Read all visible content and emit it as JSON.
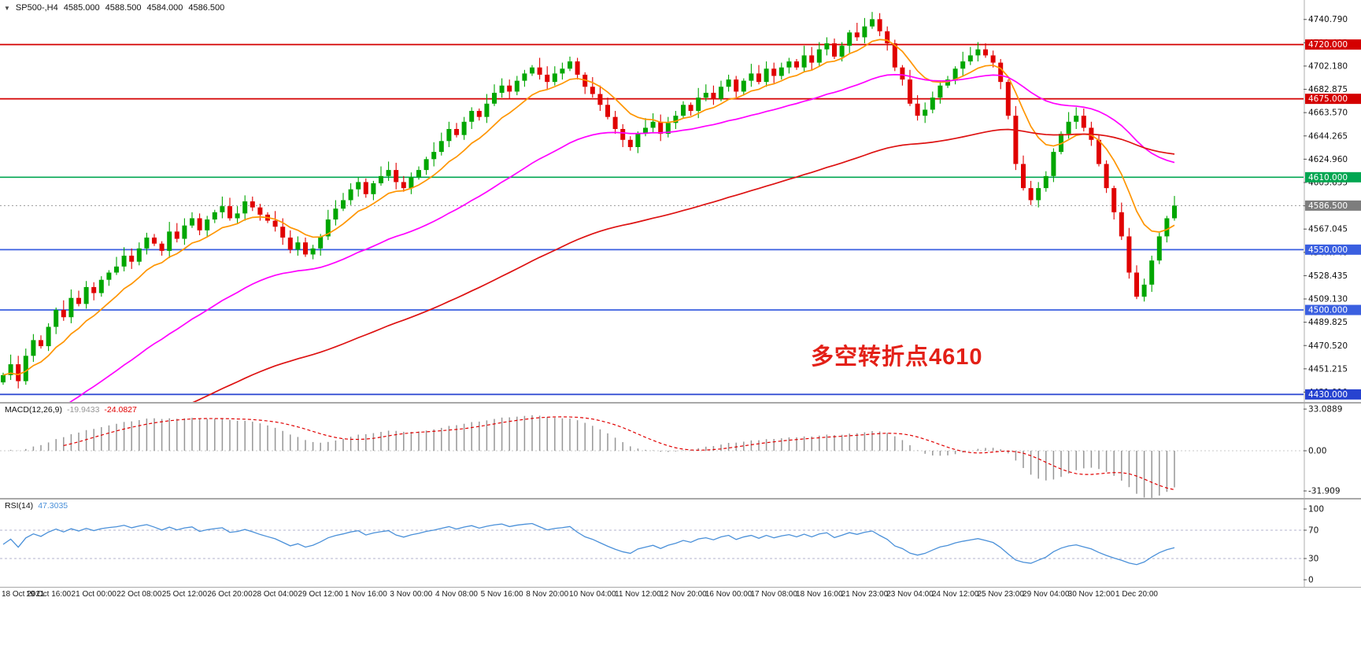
{
  "symbol_bar": {
    "expander": "▼",
    "title": "SP500-,H4",
    "ohlc": {
      "open": "4585.000",
      "high": "4588.500",
      "low": "4584.000",
      "close": "4586.500"
    }
  },
  "annotation": {
    "text": "多空转折点4610",
    "color": "#e32017"
  },
  "colors": {
    "up": "#00a600",
    "down": "#e00000",
    "separator": "#a8a8a8",
    "axis_border": "#adadad",
    "macd_hist": "#969696",
    "macd_signal": "#e00000",
    "rsi_line": "#4a90d9",
    "rsi_level": "#b3b3cc",
    "axis_text": "#111111",
    "current_price_line": "#999999",
    "current_price_bg": "#7d7d7d"
  },
  "price_axis": {
    "tick_values": [
      4740.79,
      4721.485,
      4702.18,
      4682.875,
      4663.57,
      4644.265,
      4624.96,
      4605.655,
      4586.35,
      4567.045,
      4547.74,
      4528.435,
      4509.13,
      4489.825,
      4470.52,
      4451.215,
      4431.91
    ],
    "tick_labels": [
      "4740.790",
      "4721.485",
      "4702.180",
      "4682.875",
      "4663.570",
      "4644.265",
      "4624.960",
      "4605.655",
      "4586.350",
      "4567.045",
      "4547.740",
      "4528.435",
      "4509.130",
      "4489.825",
      "4470.520",
      "4451.215",
      "4431.910"
    ]
  },
  "levels": [
    {
      "price": 4720.0,
      "label": "4720.000",
      "color": "#d40000"
    },
    {
      "price": 4675.0,
      "label": "4675.000",
      "color": "#d40000"
    },
    {
      "price": 4610.0,
      "label": "4610.000",
      "color": "#00a651"
    },
    {
      "price": 4550.0,
      "label": "4550.000",
      "color": "#3a5fe0"
    },
    {
      "price": 4500.0,
      "label": "4500.000",
      "color": "#3a5fe0"
    },
    {
      "price": 4430.0,
      "label": "4430.000",
      "color": "#2743d0"
    }
  ],
  "current_price": {
    "value": 4586.5,
    "label": "4586.500"
  },
  "time_axis": {
    "labels": [
      "18 Oct 2021",
      "19 Oct 16:00",
      "21 Oct 00:00",
      "22 Oct 08:00",
      "25 Oct 12:00",
      "26 Oct 20:00",
      "28 Oct 04:00",
      "29 Oct 12:00",
      "1 Nov 16:00",
      "3 Nov 00:00",
      "4 Nov 08:00",
      "5 Nov 16:00",
      "8 Nov 20:00",
      "10 Nov 04:00",
      "11 Nov 12:00",
      "12 Nov 20:00",
      "16 Nov 00:00",
      "17 Nov 08:00",
      "18 Nov 16:00",
      "21 Nov 23:00",
      "23 Nov 04:00",
      "24 Nov 12:00",
      "25 Nov 23:00",
      "29 Nov 04:00",
      "30 Nov 12:00",
      "1 Dec 20:00"
    ]
  },
  "macd_panel": {
    "name": "MACD(12,26,9)",
    "value_main": "-19.9433",
    "value_signal": "-24.0827",
    "axis": [
      {
        "value": 33.0889,
        "label": "33.0889"
      },
      {
        "value": 0,
        "label": "0.00"
      },
      {
        "value": -31.909,
        "label": "-31.909"
      }
    ]
  },
  "rsi_panel": {
    "name": "RSI(14)",
    "value": "47.3035",
    "levels": [
      70,
      30
    ],
    "axis": [
      {
        "value": 100,
        "label": "100"
      },
      {
        "value": 70,
        "label": "70"
      },
      {
        "value": 30,
        "label": "30"
      },
      {
        "value": 0,
        "label": "0"
      }
    ]
  },
  "chart_data": {
    "type": "candlestick",
    "symbol": "SP500-",
    "timeframe": "H4",
    "title": "SP500-,H4",
    "last_ohlc": {
      "open": 4585.0,
      "high": 4588.5,
      "low": 4584.0,
      "close": 4586.5
    },
    "price_range": [
      4427,
      4753
    ],
    "x_range": [
      "18 Oct 2021",
      "1 Dec 20:00"
    ],
    "first_open": 4440,
    "closes": [
      4446,
      4455,
      4441,
      4462,
      4475,
      4470,
      4486,
      4500,
      4494,
      4510,
      4505,
      4519,
      4514,
      4525,
      4531,
      4536,
      4545,
      4540,
      4551,
      4560,
      4555,
      4549,
      4565,
      4559,
      4570,
      4576,
      4566,
      4575,
      4581,
      4586,
      4576,
      4580,
      4590,
      4585,
      4579,
      4574,
      4569,
      4560,
      4550,
      4556,
      4546,
      4551,
      4561,
      4575,
      4584,
      4591,
      4600,
      4606,
      4596,
      4605,
      4611,
      4616,
      4606,
      4601,
      4610,
      4616,
      4625,
      4631,
      4640,
      4650,
      4645,
      4656,
      4665,
      4660,
      4671,
      4680,
      4686,
      4681,
      4690,
      4696,
      4701,
      4695,
      4689,
      4696,
      4700,
      4706,
      4695,
      4685,
      4679,
      4670,
      4660,
      4650,
      4641,
      4635,
      4646,
      4651,
      4656,
      4646,
      4655,
      4661,
      4670,
      4665,
      4676,
      4680,
      4675,
      4685,
      4691,
      4681,
      4690,
      4696,
      4689,
      4700,
      4694,
      4701,
      4706,
      4701,
      4711,
      4705,
      4716,
      4721,
      4710,
      4719,
      4730,
      4726,
      4735,
      4741,
      4731,
      4721,
      4701,
      4691,
      4671,
      4661,
      4666,
      4676,
      4686,
      4691,
      4700,
      4706,
      4711,
      4716,
      4711,
      4705,
      4689,
      4661,
      4621,
      4601,
      4591,
      4601,
      4611,
      4631,
      4646,
      4656,
      4661,
      4651,
      4641,
      4621,
      4601,
      4581,
      4561,
      4531,
      4511,
      4521,
      4541,
      4561,
      4576,
      4586.5
    ],
    "moving_averages": [
      {
        "name": "fast-ma",
        "period": 10,
        "color": "#ff9500"
      },
      {
        "name": "mid-ma",
        "period": 40,
        "color": "#ff00ff"
      },
      {
        "name": "slow-ma",
        "period": 100,
        "color": "#dd1111"
      }
    ],
    "indicators": {
      "macd": {
        "fast": 12,
        "slow": 26,
        "signal": 9,
        "last_main": -19.9433,
        "last_signal": -24.0827,
        "axis_max": 33.0889,
        "axis_min": -31.909
      },
      "rsi": {
        "period": 14,
        "last": 47.3035,
        "levels": [
          70,
          30
        ],
        "axis": [
          100,
          70,
          30,
          0
        ]
      }
    },
    "horizontal_lines": [
      4720,
      4675,
      4610,
      4550,
      4500,
      4430
    ],
    "annotation": "多空转折点4610"
  }
}
